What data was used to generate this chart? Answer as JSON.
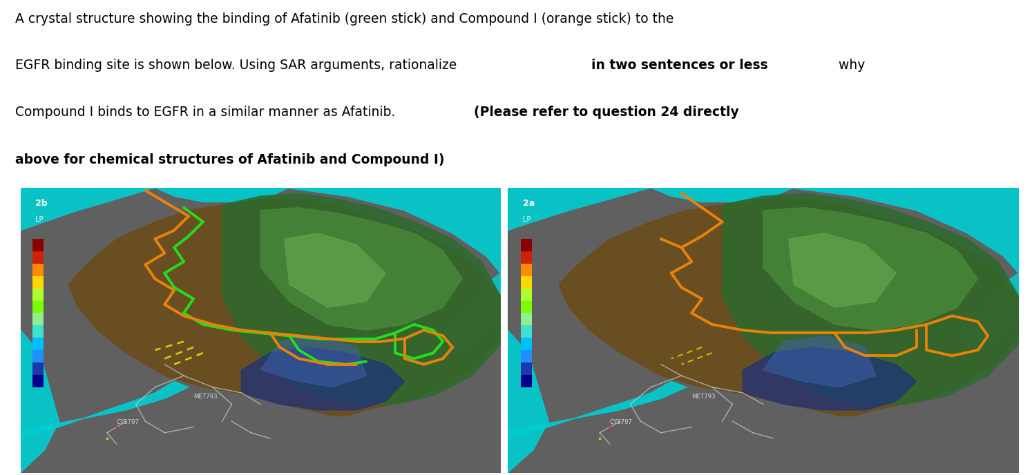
{
  "bg_color": "#ffffff",
  "fig_width": 14.94,
  "fig_height": 6.88,
  "panel_bg": "#5a5a5a",
  "left_label": "2b",
  "right_label": "2a",
  "sub_label": "LP",
  "text_fontsize": 13.5,
  "colorbar_colors_bottom_top": [
    "#00008B",
    "#1a3aaa",
    "#1e90FF",
    "#00BFFF",
    "#40E0D0",
    "#90EE90",
    "#7CFC00",
    "#ADFF2F",
    "#FFD700",
    "#FF8C00",
    "#CC2200",
    "#8B0000"
  ],
  "cyan_color": "#00CED1",
  "orange_color": "#E8820A",
  "green_stick_color": "#22DD22",
  "brown_surface": "#6B4C1A",
  "green_surface_dark": "#2D6A2D",
  "green_surface_mid": "#4A8A3A",
  "green_surface_light": "#6AAA50",
  "blue_surface": "#1E3A8A",
  "grey_bg": "#606060"
}
